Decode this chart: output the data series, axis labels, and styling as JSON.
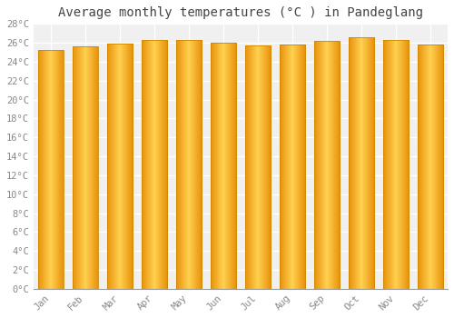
{
  "title": "Average monthly temperatures (°C ) in Pandeglang",
  "months": [
    "Jan",
    "Feb",
    "Mar",
    "Apr",
    "May",
    "Jun",
    "Jul",
    "Aug",
    "Sep",
    "Oct",
    "Nov",
    "Dec"
  ],
  "values": [
    25.2,
    25.6,
    25.9,
    26.3,
    26.3,
    26.0,
    25.7,
    25.8,
    26.2,
    26.6,
    26.3,
    25.8
  ],
  "bar_color_left": "#E8900A",
  "bar_color_mid": "#FFD050",
  "bar_color_right": "#E8900A",
  "bar_edge_color": "#CC8800",
  "ylim": [
    0,
    28
  ],
  "yticks": [
    0,
    2,
    4,
    6,
    8,
    10,
    12,
    14,
    16,
    18,
    20,
    22,
    24,
    26,
    28
  ],
  "background_color": "#ffffff",
  "plot_bg_color": "#f0f0f0",
  "grid_color": "#ffffff",
  "title_fontsize": 10,
  "tick_fontsize": 7.5,
  "tick_color": "#888888",
  "title_color": "#444444",
  "font_family": "monospace"
}
